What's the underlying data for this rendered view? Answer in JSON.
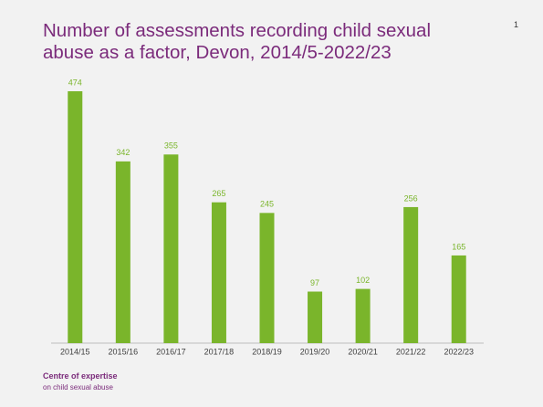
{
  "chart_data": {
    "type": "bar",
    "title": "Number of assessments recording child sexual abuse as a factor, Devon, 2014/5-2022/23",
    "categories": [
      "2014/15",
      "2015/16",
      "2016/17",
      "2017/18",
      "2018/19",
      "2019/20",
      "2020/21",
      "2021/22",
      "2022/23"
    ],
    "values": [
      474,
      342,
      355,
      265,
      245,
      97,
      102,
      256,
      165
    ],
    "color": "#7ab52b"
  },
  "page_number": "1",
  "footer": {
    "line1": "Centre of expertise",
    "line2": "on child sexual abuse"
  }
}
